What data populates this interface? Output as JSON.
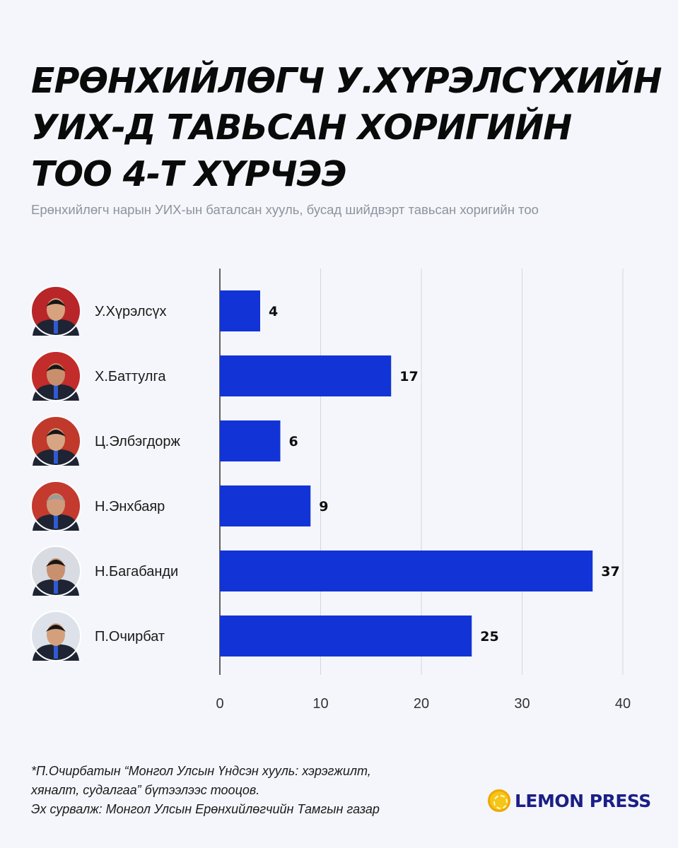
{
  "header": {
    "title_lines": [
      "ЕРӨНХИЙЛӨГЧ У.ХҮРЭЛСҮХИЙН",
      "УИХ-Д ТАВЬСАН ХОРИГИЙН",
      "ТОО 4-Т ХҮРЧЭЭ"
    ],
    "subtitle": "Ерөнхийлөгч нарын УИХ-ын баталсан хууль, бусад шийдвэрт тавьсан хоригийн тоо"
  },
  "chart_data": {
    "type": "bar",
    "orientation": "horizontal",
    "categories": [
      "У.Хүрэлсүх",
      "Х.Баттулга",
      "Ц.Элбэгдорж",
      "Н.Энхбаяр",
      "Н.Багабанди",
      "П.Очирбат"
    ],
    "values": [
      4,
      17,
      6,
      9,
      37,
      25
    ],
    "xlim": [
      0,
      40
    ],
    "xticks": [
      0,
      10,
      20,
      30,
      40
    ],
    "grid": true,
    "bar_color": "#1234d6",
    "avatar_icons": [
      "portrait-icon",
      "portrait-icon",
      "portrait-icon",
      "portrait-icon",
      "portrait-icon",
      "portrait-icon"
    ]
  },
  "footer": {
    "footnote_lines": [
      "*П.Очирбатын “Монгол Улсын Үндсэн хууль: хэрэгжилт,",
      "хяналт, судалгаа” бүтээлээс тооцов.",
      "Эх сурвалж: Монгол Улсын Ерөнхийлөгчийн Тамгын газар"
    ],
    "logo_text": "LEMON PRESS",
    "logo_icon": "lemon-icon"
  }
}
